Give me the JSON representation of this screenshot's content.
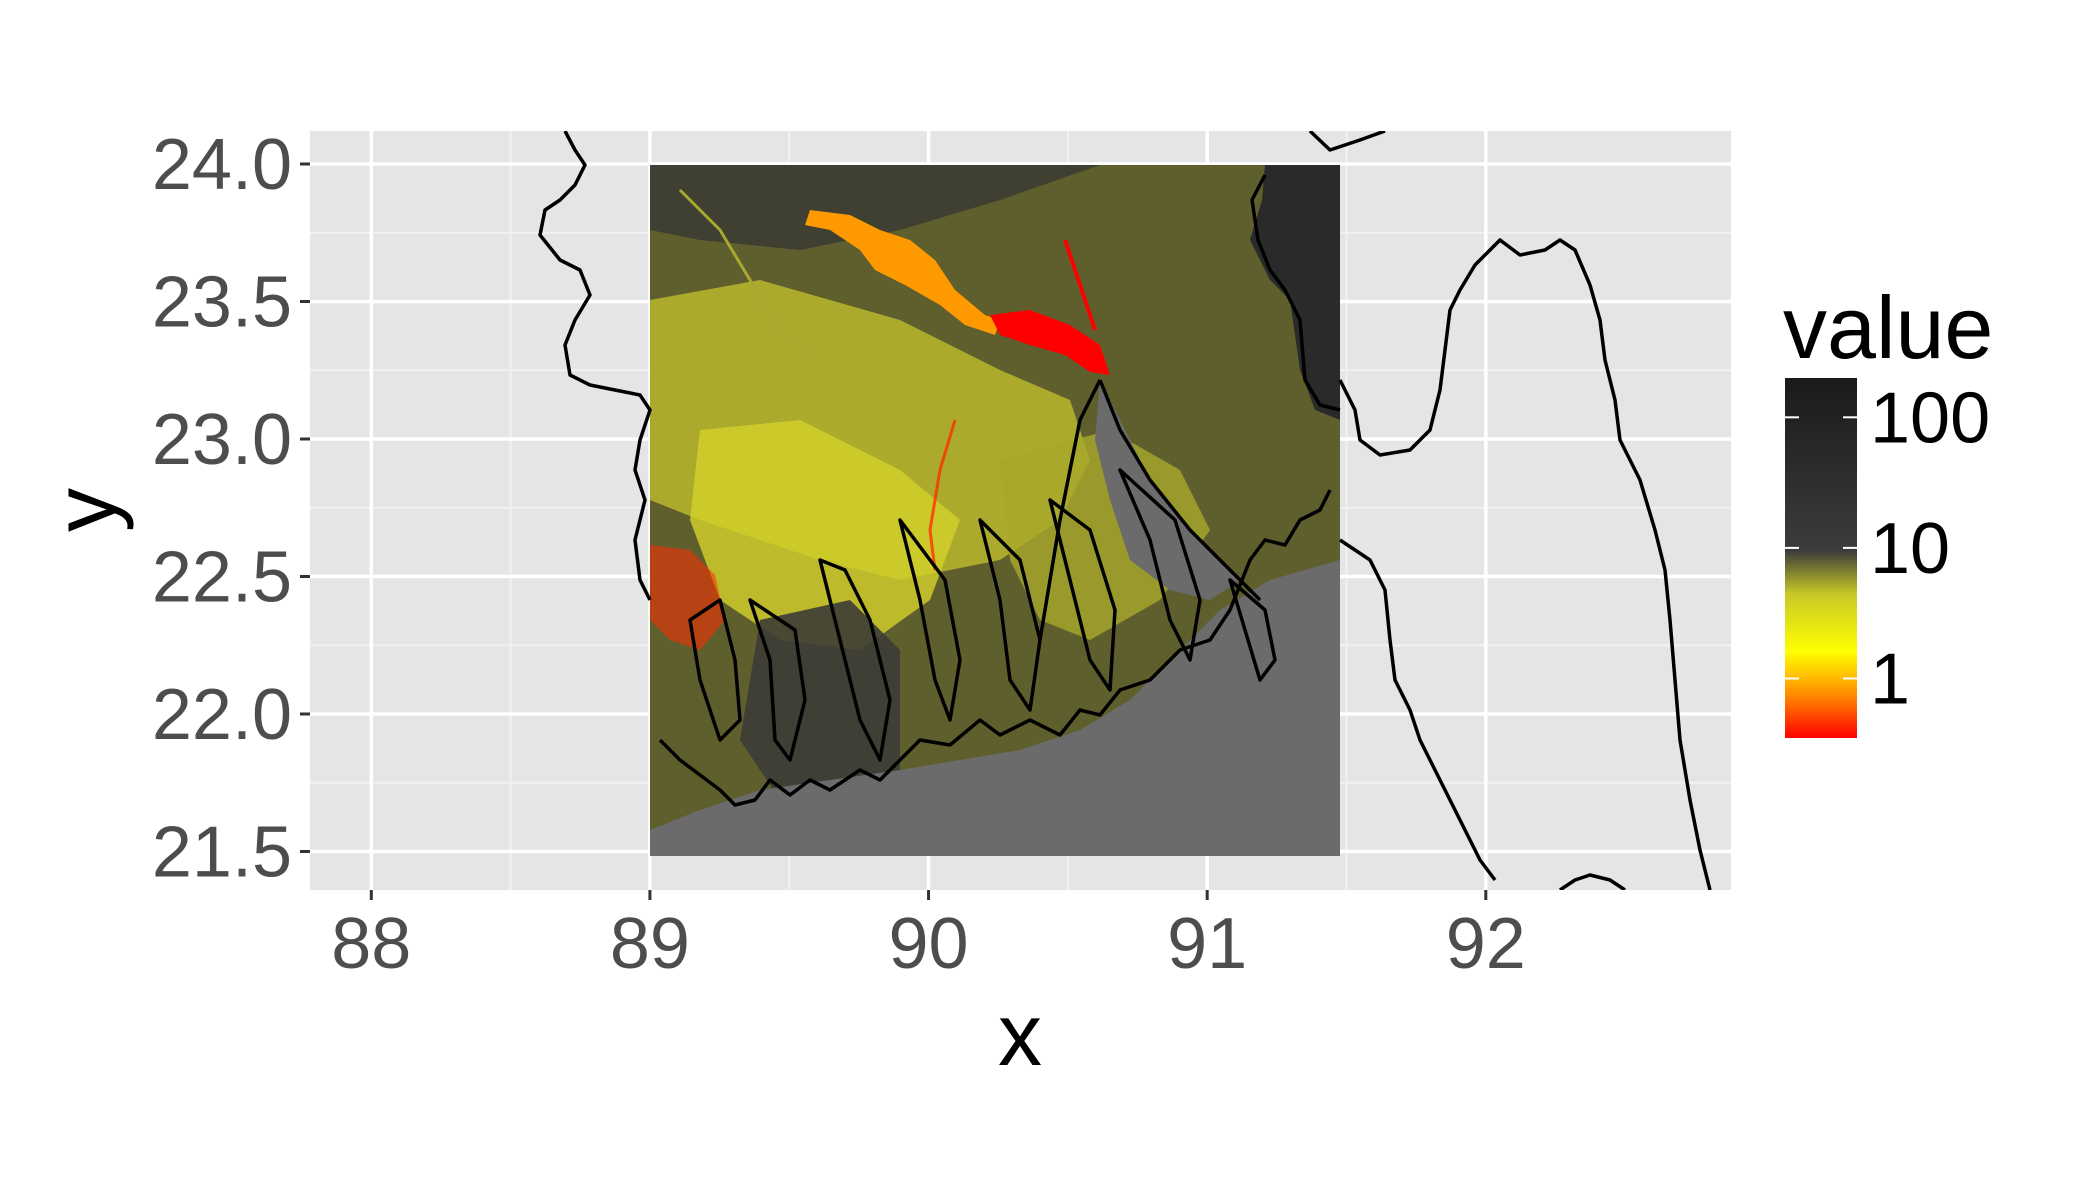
{
  "chart_data": {
    "type": "heatmap",
    "subtype": "raster map with coastline outlines",
    "title": "",
    "xlabel": "x",
    "ylabel": "y",
    "xlim": [
      87.78,
      92.88
    ],
    "ylim": [
      21.36,
      24.12
    ],
    "x_ticks": [
      "88",
      "89",
      "90",
      "91",
      "92"
    ],
    "y_ticks": [
      "21.5",
      "22.0",
      "22.5",
      "23.0",
      "23.5",
      "24.0"
    ],
    "raster_extent": {
      "x": [
        89.0,
        91.5
      ],
      "y": [
        21.5,
        24.0
      ]
    },
    "grid": true,
    "panel_background": "#e5e5e5",
    "legend": {
      "title": "value",
      "position": "right",
      "scale": "log",
      "labels": [
        "100",
        "10",
        "1"
      ],
      "breaks": [
        100,
        10,
        1
      ],
      "colors": [
        "#ff0000",
        "#ff8c00",
        "#ffff00",
        "#c8c828",
        "#3a3a3a",
        "#1a1a1a"
      ]
    },
    "regions": [
      {
        "name": "water (sea)",
        "value_color": "#6b6b6b"
      },
      {
        "name": "river (orange)",
        "value_color": "#ff9900"
      },
      {
        "name": "river (red)",
        "value_color": "#ff0000"
      },
      {
        "name": "hills (dark)",
        "value_color": "#2a2a2a"
      },
      {
        "name": "land (yellow)",
        "value_color": "#c8c827"
      }
    ]
  }
}
